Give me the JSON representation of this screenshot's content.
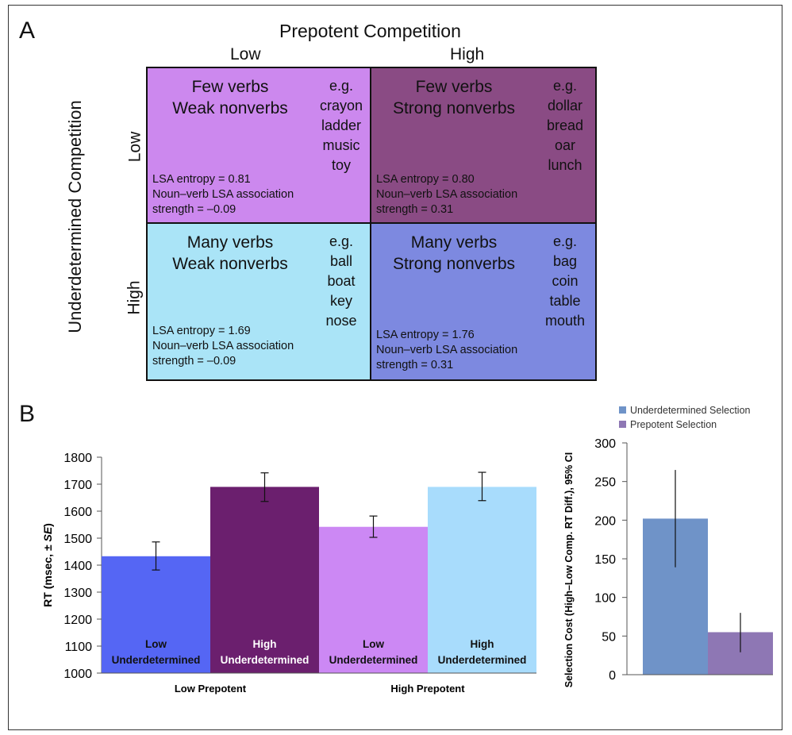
{
  "panel_a": {
    "letter": "A",
    "title": "Prepotent Competition",
    "columns": [
      "Low",
      "High"
    ],
    "side_title": "Underdetermined Competition",
    "rows": [
      "Low",
      "High"
    ],
    "cells": [
      {
        "heading1": "Few verbs",
        "heading2": "Weak nonverbs",
        "eg": "e.g.",
        "examples": [
          "crayon",
          "ladder",
          "music",
          "toy"
        ],
        "stat1": "LSA entropy = 0.81",
        "stat2": "Noun–verb LSA association",
        "stat3": "strength = –0.09",
        "color": "#cc88ee"
      },
      {
        "heading1": "Few verbs",
        "heading2": "Strong nonverbs",
        "eg": "e.g.",
        "examples": [
          "dollar",
          "bread",
          "oar",
          "lunch"
        ],
        "stat1": "LSA entropy = 0.80",
        "stat2": "Noun–verb LSA association",
        "stat3": "strength = 0.31",
        "color": "#8a4b84"
      },
      {
        "heading1": "Many verbs",
        "heading2": "Weak nonverbs",
        "eg": "e.g.",
        "examples": [
          "ball",
          "boat",
          "key",
          "nose"
        ],
        "stat1": "LSA entropy = 1.69",
        "stat2": "Noun–verb LSA association",
        "stat3": "strength = –0.09",
        "color": "#aae4f7"
      },
      {
        "heading1": "Many verbs",
        "heading2": "Strong nonverbs",
        "eg": "e.g.",
        "examples": [
          "bag",
          "coin",
          "table",
          "mouth"
        ],
        "stat1": "LSA entropy = 1.76",
        "stat2": "Noun–verb LSA association",
        "stat3": "strength = 0.31",
        "color": "#7d89e0"
      }
    ]
  },
  "panel_b": {
    "letter": "B"
  },
  "chart_data": [
    {
      "type": "bar",
      "title": "",
      "ylabel_main": "RT (msec, ± ",
      "ylabel_italic": "SE",
      "ylabel_end": ")",
      "ylim": [
        1000,
        1800
      ],
      "yticks": [
        1000,
        1100,
        1200,
        1300,
        1400,
        1500,
        1600,
        1700,
        1800
      ],
      "groups": [
        "Low Prepotent",
        "High Prepotent"
      ],
      "bars": [
        {
          "line1": "Low",
          "line2": "Underdetermined",
          "value": 1433,
          "err_low": 1382,
          "err_high": 1486,
          "color": "#5566f4"
        },
        {
          "line1": "High",
          "line2": "Underdetermined",
          "value": 1690,
          "err_low": 1636,
          "err_high": 1742,
          "color": "#6b1f6e"
        },
        {
          "line1": "Low",
          "line2": "Underdetermined",
          "value": 1542,
          "err_low": 1503,
          "err_high": 1582,
          "color": "#cc88f4"
        },
        {
          "line1": "High",
          "line2": "Underdetermined",
          "value": 1690,
          "err_low": 1639,
          "err_high": 1744,
          "color": "#a8dcfc"
        }
      ],
      "grid": false
    },
    {
      "type": "bar",
      "title": "",
      "ylabel": "Selection Cost (High–Low Comp. RT Diff.), 95% CI",
      "ylim": [
        0,
        300
      ],
      "yticks": [
        0,
        50,
        100,
        150,
        200,
        250,
        300
      ],
      "legend_position": "top",
      "series": [
        {
          "name": "Underdetermined Selection",
          "value": 202,
          "err_low": 139,
          "err_high": 265,
          "color": "#6f93c8"
        },
        {
          "name": "Prepotent Selection",
          "value": 55,
          "err_low": 29,
          "err_high": 80,
          "color": "#8e77b4"
        }
      ],
      "grid": false
    }
  ]
}
